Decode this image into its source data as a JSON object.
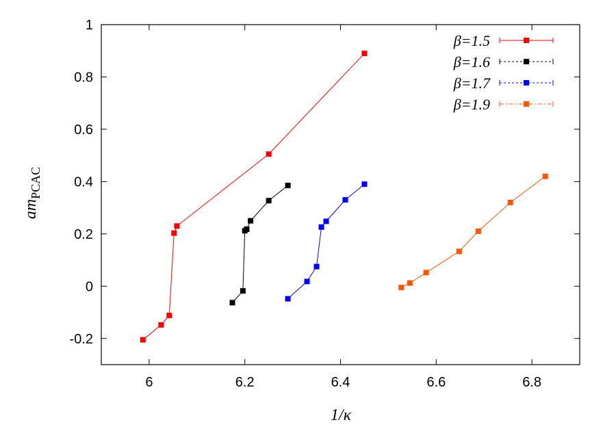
{
  "chart_data": {
    "type": "line",
    "xlabel": "1/κ",
    "ylabel": "am_PCAC",
    "ylabel_main": "am",
    "ylabel_sub": "PCAC",
    "xlim": [
      5.9,
      6.9
    ],
    "ylim": [
      -0.3,
      1.0
    ],
    "xticks": [
      6.0,
      6.2,
      6.4,
      6.6,
      6.8
    ],
    "yticks": [
      -0.2,
      0,
      0.2,
      0.4,
      0.6,
      0.8,
      1
    ],
    "xtick_labels": [
      "6",
      "6.2",
      "6.4",
      "6.6",
      "6.8"
    ],
    "ytick_labels": [
      "-0.2",
      "0",
      "0.2",
      "0.4",
      "0.6",
      "0.8",
      "1"
    ],
    "grid": false,
    "legend_position": "top-right",
    "series": [
      {
        "name": "β=1.5",
        "color": "#ff0000",
        "dash": "",
        "x": [
          5.987,
          6.025,
          6.042,
          6.052,
          6.058,
          6.25,
          6.45
        ],
        "y": [
          -0.205,
          -0.148,
          -0.112,
          0.203,
          0.23,
          0.505,
          0.89
        ]
      },
      {
        "name": "β=1.6",
        "color": "#000000",
        "dash": "3,3",
        "x": [
          6.174,
          6.196,
          6.2,
          6.204,
          6.212,
          6.25,
          6.29
        ],
        "y": [
          -0.063,
          -0.018,
          0.212,
          0.218,
          0.25,
          0.327,
          0.385
        ]
      },
      {
        "name": "β=1.7",
        "color": "#0000ff",
        "dash": "3,3",
        "x": [
          6.29,
          6.33,
          6.35,
          6.36,
          6.37,
          6.41,
          6.45
        ],
        "y": [
          -0.048,
          0.018,
          0.075,
          0.226,
          0.248,
          0.33,
          0.39
        ]
      },
      {
        "name": "β=1.9",
        "color": "#ff5500",
        "dash": "6,3,2,3",
        "x": [
          6.527,
          6.545,
          6.579,
          6.648,
          6.688,
          6.755,
          6.828
        ],
        "y": [
          -0.005,
          0.012,
          0.052,
          0.133,
          0.21,
          0.32,
          0.42
        ]
      }
    ]
  }
}
